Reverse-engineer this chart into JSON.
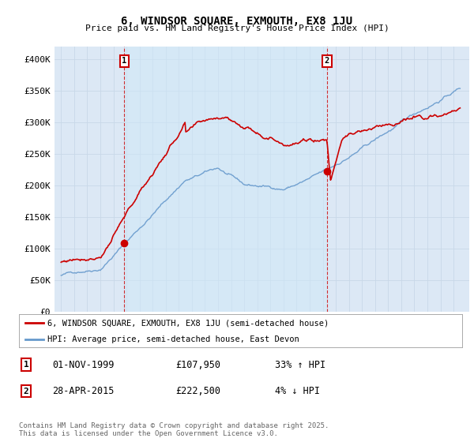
{
  "title": "6, WINDSOR SQUARE, EXMOUTH, EX8 1JU",
  "subtitle": "Price paid vs. HM Land Registry's House Price Index (HPI)",
  "legend_line1": "6, WINDSOR SQUARE, EXMOUTH, EX8 1JU (semi-detached house)",
  "legend_line2": "HPI: Average price, semi-detached house, East Devon",
  "annotation1_date": "01-NOV-1999",
  "annotation1_price": "£107,950",
  "annotation1_hpi": "33% ↑ HPI",
  "annotation2_date": "28-APR-2015",
  "annotation2_price": "£222,500",
  "annotation2_hpi": "4% ↓ HPI",
  "footer": "Contains HM Land Registry data © Crown copyright and database right 2025.\nThis data is licensed under the Open Government Licence v3.0.",
  "red_color": "#cc0000",
  "blue_color": "#6699cc",
  "background_color": "#dce8f5",
  "highlight_color": "#cfe0f0",
  "grid_color": "#c8d8e8",
  "ylim": [
    0,
    420000
  ],
  "yticks": [
    0,
    50000,
    100000,
    150000,
    200000,
    250000,
    300000,
    350000,
    400000
  ],
  "sale1_year": 1999.83,
  "sale1_price": 107950,
  "sale2_year": 2015.32,
  "sale2_price": 222500
}
